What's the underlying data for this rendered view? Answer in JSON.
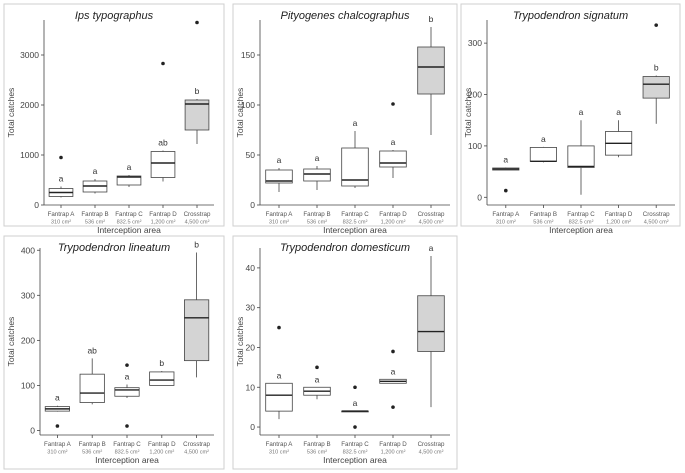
{
  "x_axis_title": "Interception area",
  "y_axis_title": "Total catches",
  "categories": [
    "Fantrap A",
    "Fantrap B",
    "Fantrap C",
    "Fantrap D",
    "Crosstrap"
  ],
  "areas": [
    "310 cm²",
    "536 cm²",
    "832.5 cm²",
    "1,200 cm²",
    "4,500 cm²"
  ],
  "colors": {
    "fantrap_fill": "#ffffff",
    "crosstrap_fill": "#d4d4d4",
    "line": "#444444"
  },
  "chart_data": [
    {
      "type": "boxplot",
      "title": "Ips typographus",
      "ylim": [
        0,
        3700
      ],
      "yticks": [
        0,
        1000,
        2000,
        3000
      ],
      "stats": [
        {
          "category": "Fantrap A",
          "min": 150,
          "q1": 170,
          "median": 250,
          "q3": 330,
          "max": 370,
          "outliers": [
            950
          ],
          "letter": "a"
        },
        {
          "category": "Fantrap B",
          "min": 230,
          "q1": 260,
          "median": 380,
          "q3": 480,
          "max": 520,
          "outliers": [],
          "letter": "a"
        },
        {
          "category": "Fantrap C",
          "min": 360,
          "q1": 400,
          "median": 560,
          "q3": 580,
          "max": 600,
          "outliers": [],
          "letter": "a"
        },
        {
          "category": "Fantrap D",
          "min": 470,
          "q1": 550,
          "median": 840,
          "q3": 1070,
          "max": 1090,
          "outliers": [
            2830
          ],
          "letter": "ab"
        },
        {
          "category": "Crosstrap",
          "min": 1220,
          "q1": 1500,
          "median": 2020,
          "q3": 2100,
          "max": 2120,
          "outliers": [
            3650
          ],
          "letter": "b"
        }
      ]
    },
    {
      "type": "boxplot",
      "title": "Pityogenes chalcographus",
      "ylim": [
        0,
        185
      ],
      "yticks": [
        0,
        50,
        100,
        150
      ],
      "stats": [
        {
          "category": "Fantrap A",
          "min": 13,
          "q1": 22,
          "median": 24,
          "q3": 35,
          "max": 37,
          "outliers": [],
          "letter": "a"
        },
        {
          "category": "Fantrap B",
          "min": 15,
          "q1": 24,
          "median": 31,
          "q3": 36,
          "max": 39,
          "outliers": [],
          "letter": "a"
        },
        {
          "category": "Fantrap C",
          "min": 17,
          "q1": 19,
          "median": 25,
          "q3": 57,
          "max": 74,
          "outliers": [],
          "letter": "a"
        },
        {
          "category": "Fantrap D",
          "min": 27,
          "q1": 38,
          "median": 42,
          "q3": 54,
          "max": 55,
          "outliers": [
            101
          ],
          "letter": "a"
        },
        {
          "category": "Crosstrap",
          "min": 70,
          "q1": 111,
          "median": 138,
          "q3": 158,
          "max": 178,
          "outliers": [],
          "letter": "b"
        }
      ]
    },
    {
      "type": "boxplot",
      "title": "Trypodendron signatum",
      "ylim": [
        -15,
        345
      ],
      "yticks": [
        0,
        100,
        200,
        300
      ],
      "stats": [
        {
          "category": "Fantrap A",
          "min": 53,
          "q1": 53,
          "median": 55,
          "q3": 57,
          "max": 58,
          "outliers": [
            13
          ],
          "letter": "a"
        },
        {
          "category": "Fantrap B",
          "min": 68,
          "q1": 70,
          "median": 70,
          "q3": 97,
          "max": 98,
          "outliers": [],
          "letter": "a"
        },
        {
          "category": "Fantrap C",
          "min": 5,
          "q1": 58,
          "median": 60,
          "q3": 100,
          "max": 150,
          "outliers": [],
          "letter": "a"
        },
        {
          "category": "Fantrap D",
          "min": 78,
          "q1": 82,
          "median": 105,
          "q3": 128,
          "max": 150,
          "outliers": [],
          "letter": "a"
        },
        {
          "category": "Crosstrap",
          "min": 143,
          "q1": 193,
          "median": 220,
          "q3": 235,
          "max": 237,
          "outliers": [
            335
          ],
          "letter": "b"
        }
      ]
    },
    {
      "type": "boxplot",
      "title": "Trypodendron lineatum",
      "ylim": [
        -10,
        405
      ],
      "yticks": [
        0,
        100,
        200,
        300,
        400
      ],
      "stats": [
        {
          "category": "Fantrap A",
          "min": 42,
          "q1": 43,
          "median": 48,
          "q3": 53,
          "max": 55,
          "outliers": [
            10
          ],
          "letter": "a"
        },
        {
          "category": "Fantrap B",
          "min": 58,
          "q1": 62,
          "median": 83,
          "q3": 125,
          "max": 160,
          "outliers": [],
          "letter": "ab"
        },
        {
          "category": "Fantrap C",
          "min": 72,
          "q1": 76,
          "median": 90,
          "q3": 95,
          "max": 102,
          "outliers": [
            145,
            10
          ],
          "letter": "a"
        },
        {
          "category": "Fantrap D",
          "min": 100,
          "q1": 100,
          "median": 112,
          "q3": 130,
          "max": 132,
          "outliers": [],
          "letter": "b"
        },
        {
          "category": "Crosstrap",
          "min": 118,
          "q1": 155,
          "median": 250,
          "q3": 290,
          "max": 395,
          "outliers": [],
          "letter": "b"
        }
      ]
    },
    {
      "type": "boxplot",
      "title": "Trypodendron domesticum",
      "ylim": [
        -2,
        45
      ],
      "yticks": [
        0,
        10,
        20,
        30,
        40
      ],
      "stats": [
        {
          "category": "Fantrap A",
          "min": 2,
          "q1": 4,
          "median": 8,
          "q3": 11,
          "max": 11,
          "outliers": [
            25
          ],
          "letter": "a"
        },
        {
          "category": "Fantrap B",
          "min": 7,
          "q1": 8,
          "median": 9,
          "q3": 10,
          "max": 10,
          "outliers": [
            15
          ],
          "letter": "a"
        },
        {
          "category": "Fantrap C",
          "min": 4,
          "q1": 4,
          "median": 4,
          "q3": 4,
          "max": 4,
          "outliers": [
            10,
            0
          ],
          "letter": "a"
        },
        {
          "category": "Fantrap D",
          "min": 11,
          "q1": 11,
          "median": 11.5,
          "q3": 12,
          "max": 12,
          "outliers": [
            19,
            5
          ],
          "letter": "a"
        },
        {
          "category": "Crosstrap",
          "min": 5,
          "q1": 19,
          "median": 24,
          "q3": 33,
          "max": 43,
          "outliers": [],
          "letter": "a"
        }
      ]
    }
  ]
}
